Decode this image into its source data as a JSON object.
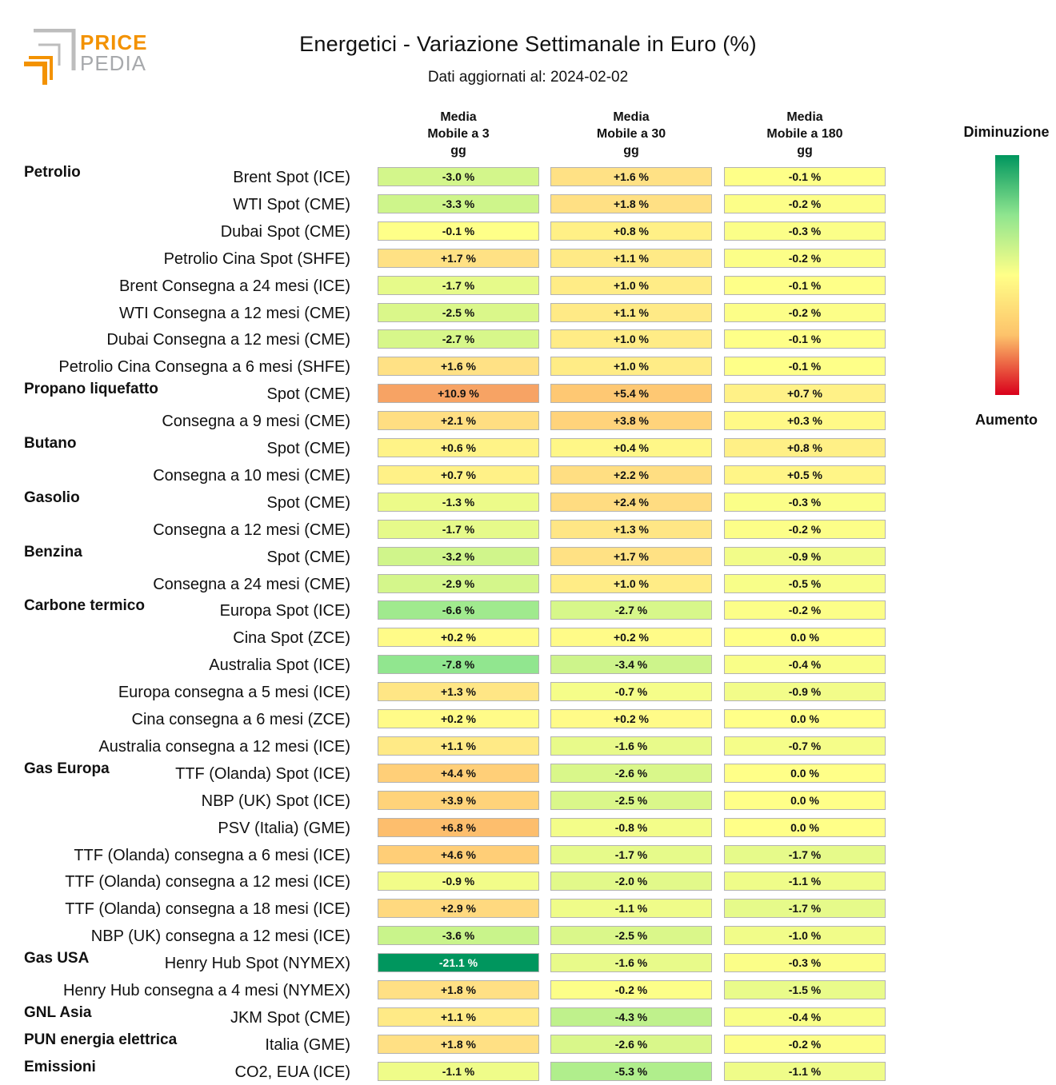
{
  "logo": {
    "line1": "PRICE",
    "line2": "PEDIA"
  },
  "title": "Energetici - Variazione Settimanale in Euro (%)",
  "subtitle": "Dati aggiornati al: 2024-02-02",
  "legend": {
    "top_label": "Diminuzione",
    "bottom_label": "Aumento"
  },
  "colors": {
    "strong_decrease": "#00965e",
    "neutral": "#ffff88",
    "strong_increase": "#d9001b"
  },
  "chart_data": {
    "type": "table",
    "title": "Energetici - Variazione Settimanale in Euro (%)",
    "columns": [
      "Media Mobile a 3 gg",
      "Media Mobile a 30 gg",
      "Media Mobile a 180 gg"
    ],
    "column_headers": [
      [
        "Media",
        "Mobile a 3",
        "gg"
      ],
      [
        "Media",
        "Mobile a 30",
        "gg"
      ],
      [
        "Media",
        "Mobile a 180",
        "gg"
      ]
    ],
    "rows": [
      {
        "category": "Petrolio",
        "label": "Brent Spot (ICE)",
        "values": [
          -3.0,
          1.6,
          -0.1
        ]
      },
      {
        "category": "",
        "label": "WTI Spot (CME)",
        "values": [
          -3.3,
          1.8,
          -0.2
        ]
      },
      {
        "category": "",
        "label": "Dubai Spot (CME)",
        "values": [
          -0.1,
          0.8,
          -0.3
        ]
      },
      {
        "category": "",
        "label": "Petrolio Cina Spot (SHFE)",
        "values": [
          1.7,
          1.1,
          -0.2
        ]
      },
      {
        "category": "",
        "label": "Brent Consegna a 24 mesi (ICE)",
        "values": [
          -1.7,
          1.0,
          -0.1
        ]
      },
      {
        "category": "",
        "label": "WTI Consegna a 12 mesi (CME)",
        "values": [
          -2.5,
          1.1,
          -0.2
        ]
      },
      {
        "category": "",
        "label": "Dubai Consegna a 12 mesi (CME)",
        "values": [
          -2.7,
          1.0,
          -0.1
        ]
      },
      {
        "category": "",
        "label": "Petrolio Cina Consegna a 6 mesi (SHFE)",
        "values": [
          1.6,
          1.0,
          -0.1
        ]
      },
      {
        "category": "Propano liquefatto",
        "label": "Spot (CME)",
        "values": [
          10.9,
          5.4,
          0.7
        ]
      },
      {
        "category": "",
        "label": "Consegna a 9 mesi (CME)",
        "values": [
          2.1,
          3.8,
          0.3
        ]
      },
      {
        "category": "Butano",
        "label": "Spot (CME)",
        "values": [
          0.6,
          0.4,
          0.8
        ]
      },
      {
        "category": "",
        "label": "Consegna a 10 mesi (CME)",
        "values": [
          0.7,
          2.2,
          0.5
        ]
      },
      {
        "category": "Gasolio",
        "label": "Spot (CME)",
        "values": [
          -1.3,
          2.4,
          -0.3
        ]
      },
      {
        "category": "",
        "label": "Consegna a 12 mesi (CME)",
        "values": [
          -1.7,
          1.3,
          -0.2
        ]
      },
      {
        "category": "Benzina",
        "label": "Spot (CME)",
        "values": [
          -3.2,
          1.7,
          -0.9
        ]
      },
      {
        "category": "",
        "label": "Consegna a 24 mesi (CME)",
        "values": [
          -2.9,
          1.0,
          -0.5
        ]
      },
      {
        "category": "Carbone termico",
        "label": "Europa Spot (ICE)",
        "values": [
          -6.6,
          -2.7,
          -0.2
        ]
      },
      {
        "category": "",
        "label": "Cina Spot (ZCE)",
        "values": [
          0.2,
          0.2,
          0.0
        ]
      },
      {
        "category": "",
        "label": "Australia Spot (ICE)",
        "values": [
          -7.8,
          -3.4,
          -0.4
        ]
      },
      {
        "category": "",
        "label": "Europa consegna a 5 mesi (ICE)",
        "values": [
          1.3,
          -0.7,
          -0.9
        ]
      },
      {
        "category": "",
        "label": "Cina consegna a 6 mesi (ZCE)",
        "values": [
          0.2,
          0.2,
          0.0
        ]
      },
      {
        "category": "",
        "label": "Australia consegna a 12 mesi (ICE)",
        "values": [
          1.1,
          -1.6,
          -0.7
        ]
      },
      {
        "category": "Gas Europa",
        "label": "TTF (Olanda) Spot (ICE)",
        "values": [
          4.4,
          -2.6,
          0.0
        ]
      },
      {
        "category": "",
        "label": "NBP (UK) Spot (ICE)",
        "values": [
          3.9,
          -2.5,
          0.0
        ]
      },
      {
        "category": "",
        "label": "PSV (Italia) (GME)",
        "values": [
          6.8,
          -0.8,
          0.0
        ]
      },
      {
        "category": "",
        "label": "TTF (Olanda) consegna a 6 mesi (ICE)",
        "values": [
          4.6,
          -1.7,
          -1.7
        ]
      },
      {
        "category": "",
        "label": "TTF (Olanda) consegna a 12 mesi (ICE)",
        "values": [
          -0.9,
          -2.0,
          -1.1
        ]
      },
      {
        "category": "",
        "label": "TTF (Olanda) consegna a 18 mesi (ICE)",
        "values": [
          2.9,
          -1.1,
          -1.7
        ]
      },
      {
        "category": "",
        "label": "NBP (UK) consegna a 12 mesi (ICE)",
        "values": [
          -3.6,
          -2.5,
          -1.0
        ]
      },
      {
        "category": "Gas USA",
        "label": "Henry Hub Spot (NYMEX)",
        "values": [
          -21.1,
          -1.6,
          -0.3
        ]
      },
      {
        "category": "",
        "label": "Henry Hub consegna a 4 mesi (NYMEX)",
        "values": [
          1.8,
          -0.2,
          -1.5
        ]
      },
      {
        "category": "GNL Asia",
        "label": "JKM Spot (CME)",
        "values": [
          1.1,
          -4.3,
          -0.4
        ]
      },
      {
        "category": "PUN energia elettrica",
        "label": "Italia (GME)",
        "values": [
          1.8,
          -2.6,
          -0.2
        ]
      },
      {
        "category": "Emissioni",
        "label": "CO2, EUA (ICE)",
        "values": [
          -1.1,
          -5.3,
          -1.1
        ]
      }
    ]
  }
}
